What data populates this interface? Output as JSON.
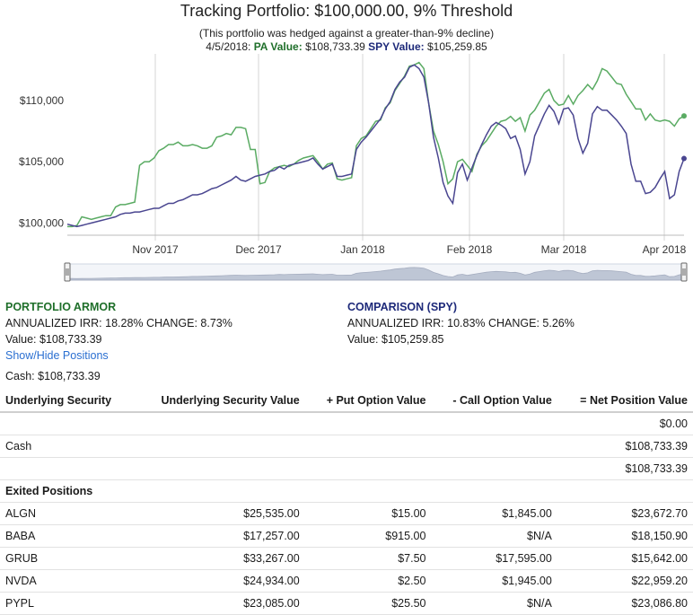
{
  "title": "Tracking Portfolio: $100,000.00, 9% Threshold",
  "hedge_note": "(This portfolio was hedged against a greater-than-9% decline)",
  "tooltip": {
    "date": "4/5/2018:",
    "pa_label": "PA Value:",
    "pa_value": "$108,733.39",
    "spy_label": "SPY Value:",
    "spy_value": "$105,259.85"
  },
  "colors": {
    "pa": "#5aab63",
    "spy": "#4a4690",
    "grid": "#d4d4d4",
    "nav": "#a9b3c6"
  },
  "chart_data": {
    "type": "line",
    "x_ticks": [
      "Nov 2017",
      "Dec 2017",
      "Jan 2018",
      "Feb 2018",
      "Mar 2018",
      "Apr 2018"
    ],
    "y_ticks": [
      "$100,000",
      "$105,000",
      "$110,000"
    ],
    "ylim": [
      99000,
      113800
    ],
    "x_start": "2017-10-06",
    "x_end": "2018-04-05",
    "series": [
      {
        "name": "PA",
        "values": [
          99700,
          99700,
          99800,
          100500,
          100400,
          100300,
          100400,
          100500,
          100600,
          100600,
          101300,
          101500,
          101500,
          101600,
          101700,
          104700,
          105000,
          105000,
          105300,
          105900,
          106100,
          106400,
          106400,
          106600,
          106300,
          106300,
          106400,
          106300,
          106100,
          106100,
          106300,
          107000,
          107100,
          107300,
          107200,
          107800,
          107800,
          107700,
          106000,
          106000,
          103200,
          103300,
          104200,
          104500,
          104600,
          104700,
          104600,
          104800,
          105100,
          105300,
          105400,
          105500,
          105000,
          104400,
          104800,
          104900,
          103600,
          103500,
          103600,
          103700,
          106300,
          106900,
          107100,
          107700,
          108300,
          108400,
          109400,
          109800,
          110800,
          111400,
          112000,
          112800,
          112900,
          113100,
          112600,
          109800,
          107500,
          106400,
          105000,
          103200,
          103600,
          105000,
          105200,
          104700,
          104200,
          105600,
          106300,
          106700,
          107300,
          107900,
          108300,
          108400,
          108700,
          108300,
          108600,
          107500,
          108800,
          109200,
          109900,
          110600,
          110900,
          110000,
          109600,
          109700,
          110400,
          109700,
          110400,
          110800,
          111300,
          110900,
          111600,
          112600,
          112400,
          111900,
          111400,
          111300,
          110500,
          109900,
          109300,
          109300,
          108400,
          108900,
          108400,
          108300,
          108400,
          108300,
          107900,
          108500,
          108733
        ]
      },
      {
        "name": "SPY",
        "values": [
          99900,
          99800,
          99700,
          99800,
          99900,
          100000,
          100100,
          100200,
          100300,
          100400,
          100500,
          100700,
          100800,
          100800,
          100900,
          100900,
          101000,
          101100,
          101200,
          101200,
          101400,
          101600,
          101600,
          101800,
          101900,
          102100,
          102300,
          102300,
          102400,
          102600,
          102800,
          102900,
          103100,
          103300,
          103500,
          103800,
          103500,
          103400,
          103600,
          103800,
          103900,
          104000,
          104200,
          104300,
          104600,
          104400,
          104700,
          104800,
          104900,
          105000,
          105100,
          105300,
          104800,
          104400,
          104600,
          104800,
          103800,
          103800,
          103900,
          104000,
          106000,
          106600,
          107000,
          107500,
          108000,
          108500,
          109300,
          109900,
          110900,
          111500,
          111900,
          112700,
          112900,
          112600,
          111900,
          109800,
          107000,
          105300,
          103300,
          102200,
          101600,
          104100,
          104800,
          103500,
          104500,
          105500,
          106400,
          107200,
          107900,
          108200,
          108000,
          107700,
          106900,
          107100,
          106000,
          104000,
          105000,
          107100,
          108000,
          108900,
          109600,
          109100,
          108100,
          109300,
          109400,
          108800,
          106900,
          105700,
          106500,
          108900,
          109500,
          109200,
          109200,
          108800,
          108400,
          107900,
          107300,
          104800,
          103400,
          103400,
          102400,
          102500,
          102900,
          103600,
          104200,
          102000,
          102300,
          104200,
          105260
        ]
      }
    ],
    "navigator_ticks": [
      "Nov 2017",
      "Dec 2017",
      "Jan 2018",
      "Feb 2018",
      "Mar 2018",
      "Apr 2018"
    ]
  },
  "pa_panel": {
    "heading": "PORTFOLIO ARMOR",
    "stats": "ANNUALIZED IRR: 18.28% CHANGE: 8.73%",
    "value": "Value: $108,733.39"
  },
  "spy_panel": {
    "heading": "COMPARISON (SPY)",
    "stats": "ANNUALIZED IRR: 10.83% CHANGE: 5.26%",
    "value": "Value: $105,259.85"
  },
  "show_hide": "Show/Hide Positions",
  "cash_line": "Cash: $108,733.39",
  "table": {
    "headers": [
      "Underlying Security",
      "Underlying Security Value",
      "+ Put Option Value",
      "- Call Option Value",
      "= Net Position Value"
    ],
    "rows": [
      [
        "",
        "",
        "",
        "",
        "$0.00"
      ],
      [
        "Cash",
        "",
        "",
        "",
        "$108,733.39"
      ],
      [
        "",
        "",
        "",
        "",
        "$108,733.39"
      ]
    ],
    "exited_label": "Exited Positions",
    "exited": [
      [
        "ALGN",
        "$25,535.00",
        "$15.00",
        "$1,845.00",
        "$23,672.70"
      ],
      [
        "BABA",
        "$17,257.00",
        "$915.00",
        "$N/A",
        "$18,150.90"
      ],
      [
        "GRUB",
        "$33,267.00",
        "$7.50",
        "$17,595.00",
        "$15,642.00"
      ],
      [
        "NVDA",
        "$24,934.00",
        "$2.50",
        "$1,945.00",
        "$22,959.20"
      ],
      [
        "PYPL",
        "$23,085.00",
        "$25.50",
        "$N/A",
        "$23,086.80"
      ]
    ]
  }
}
